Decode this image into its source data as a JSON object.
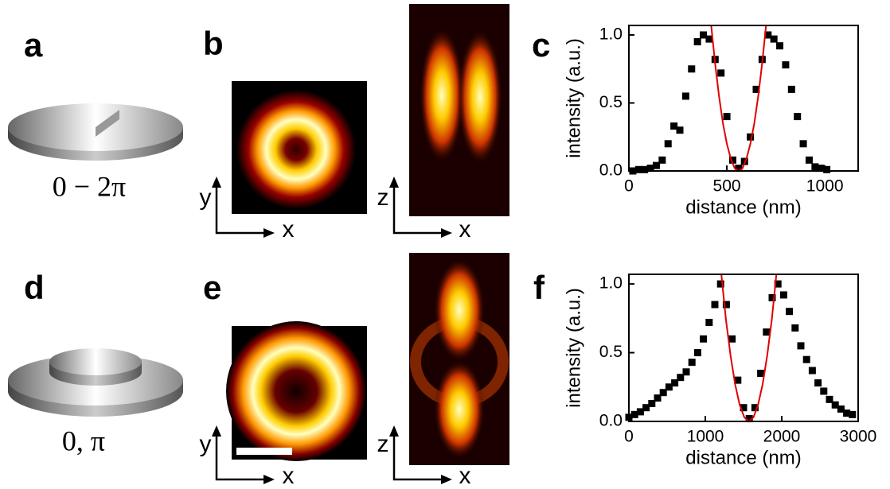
{
  "panels": {
    "a": {
      "label": "a",
      "phase": "0 − 2π"
    },
    "b": {
      "label": "b",
      "xy_axes": [
        "y",
        "x"
      ],
      "xz_axes": [
        "z",
        "x"
      ]
    },
    "c": {
      "label": "c"
    },
    "d": {
      "label": "d",
      "phase": "0, π"
    },
    "e": {
      "label": "e",
      "xy_axes": [
        "y",
        "x"
      ],
      "xz_axes": [
        "z",
        "x"
      ]
    },
    "f": {
      "label": "f"
    }
  },
  "chart_data": [
    {
      "type": "scatter",
      "x_label": "distance (nm)",
      "y_label": "intensity (a.u.)",
      "xlim": [
        0,
        1170
      ],
      "ylim": [
        0,
        1.07
      ],
      "xticks": [
        0,
        500,
        1000
      ],
      "yticks": [
        {
          "value": 0,
          "label": "0.0"
        },
        0.5,
        {
          "value": 1,
          "label": "1.0"
        }
      ],
      "series": [
        {
          "color": "#000000",
          "marker": "square",
          "x": [
            20,
            50,
            80,
            110,
            140,
            170,
            200,
            230,
            260,
            290,
            320,
            350,
            380,
            410,
            440,
            470,
            500,
            530,
            560,
            590,
            620,
            650,
            680,
            710,
            740,
            770,
            800,
            830,
            860,
            890,
            920,
            950,
            980,
            1010
          ],
          "values": [
            0,
            0.01,
            0.01,
            0.02,
            0.04,
            0.08,
            0.2,
            0.33,
            0.3,
            0.55,
            0.75,
            0.95,
            1.0,
            0.97,
            0.82,
            0.72,
            0.4,
            0.08,
            0.02,
            0.07,
            0.25,
            0.6,
            0.82,
            1.0,
            0.97,
            0.92,
            0.78,
            0.6,
            0.4,
            0.2,
            0.08,
            0.03,
            0.02,
            0.01
          ]
        },
        {
          "color": "#e00000",
          "marker": "line",
          "x": [
            420,
            440,
            460,
            480,
            500,
            520,
            540,
            560,
            580,
            600,
            620,
            640,
            660,
            680,
            700
          ],
          "values": [
            1.07,
            0.79,
            0.55,
            0.35,
            0.2,
            0.09,
            0.02,
            0,
            0.02,
            0.09,
            0.2,
            0.35,
            0.55,
            0.79,
            1.07
          ]
        }
      ]
    },
    {
      "type": "scatter",
      "x_label": "distance (nm)",
      "y_label": "intensity (a.u.)",
      "xlim": [
        0,
        3000
      ],
      "ylim": [
        0,
        1.07
      ],
      "xticks": [
        0,
        1000,
        2000,
        3000
      ],
      "yticks": [
        {
          "value": 0,
          "label": "0.0"
        },
        0.5,
        {
          "value": 1,
          "label": "1.0"
        }
      ],
      "series": [
        {
          "color": "#000000",
          "marker": "square",
          "x": [
            0,
            75,
            150,
            225,
            300,
            375,
            450,
            525,
            600,
            675,
            750,
            825,
            900,
            975,
            1050,
            1125,
            1200,
            1275,
            1350,
            1425,
            1500,
            1575,
            1650,
            1725,
            1800,
            1875,
            1950,
            2025,
            2100,
            2175,
            2250,
            2325,
            2400,
            2475,
            2550,
            2625,
            2700,
            2775,
            2850,
            2925
          ],
          "values": [
            0.03,
            0.05,
            0.07,
            0.1,
            0.13,
            0.17,
            0.21,
            0.25,
            0.28,
            0.32,
            0.36,
            0.43,
            0.5,
            0.6,
            0.72,
            0.85,
            1.0,
            0.85,
            0.6,
            0.3,
            0.1,
            0.02,
            0.1,
            0.35,
            0.65,
            0.9,
            1.0,
            0.92,
            0.8,
            0.68,
            0.55,
            0.45,
            0.37,
            0.28,
            0.22,
            0.16,
            0.12,
            0.09,
            0.06,
            0.05
          ]
        },
        {
          "color": "#e00000",
          "marker": "line",
          "x": [
            1210,
            1270,
            1330,
            1390,
            1450,
            1510,
            1570,
            1630,
            1690,
            1750,
            1810,
            1870,
            1930
          ],
          "values": [
            1.07,
            0.74,
            0.48,
            0.27,
            0.12,
            0.03,
            0,
            0.03,
            0.12,
            0.27,
            0.48,
            0.74,
            1.07
          ]
        }
      ]
    }
  ]
}
